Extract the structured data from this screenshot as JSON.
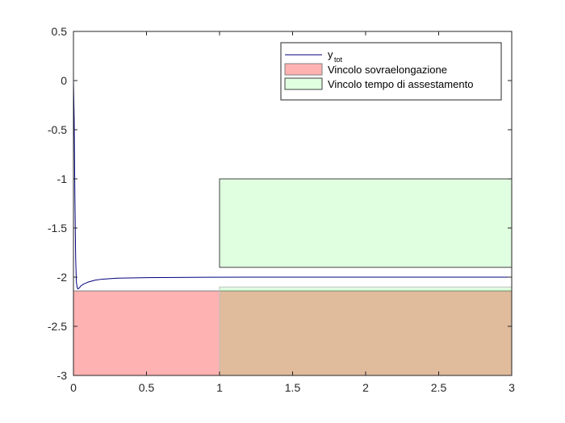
{
  "chart_data": {
    "type": "line",
    "title": "",
    "xlabel": "",
    "ylabel": "",
    "xlim": [
      0,
      3
    ],
    "ylim": [
      -3,
      0.5
    ],
    "x_ticks": [
      0,
      0.5,
      1,
      1.5,
      2,
      2.5,
      3
    ],
    "x_tick_labels": [
      "0",
      "0.5",
      "1",
      "1.5",
      "2",
      "2.5",
      "3"
    ],
    "y_ticks": [
      0.5,
      0,
      -0.5,
      -1,
      -1.5,
      -2,
      -2.5,
      -3
    ],
    "y_tick_labels": [
      "0.5",
      "0",
      "-0.5",
      "-1",
      "-1.5",
      "-2",
      "-2.5",
      "-3"
    ],
    "grid": false,
    "legend_position": "top-right",
    "series": [
      {
        "name": "y",
        "name_subscript": "tot",
        "color": "#00007f",
        "x": [
          0,
          0.005,
          0.01,
          0.015,
          0.02,
          0.025,
          0.03,
          0.04,
          0.05,
          0.07,
          0.1,
          0.15,
          0.2,
          0.3,
          0.5,
          0.8,
          1.2,
          2,
          3
        ],
        "y": [
          0.0,
          -0.4,
          -1.2,
          -1.8,
          -2.05,
          -2.1,
          -2.12,
          -2.11,
          -2.09,
          -2.07,
          -2.05,
          -2.03,
          -2.02,
          -2.01,
          -2.005,
          -2.002,
          -2.0,
          -2.0,
          -2.0
        ]
      }
    ],
    "regions": [
      {
        "name": "Vincolo sovraelongazione",
        "x": [
          0,
          3
        ],
        "y": [
          -3,
          -2.14
        ],
        "fill": "#ff0000",
        "opacity": 0.3,
        "border": "#808080"
      },
      {
        "name": "Vincolo tempo di assestamento",
        "x": [
          1,
          3
        ],
        "y": [
          -1.9,
          -1.0
        ],
        "fill": "#00ff00",
        "opacity": 0.12,
        "border": "#404040"
      },
      {
        "name": "",
        "x": [
          1,
          3
        ],
        "y": [
          -3,
          -2.1
        ],
        "fill": "#00ff00",
        "opacity": 0.12,
        "border": "#bfbfbf"
      }
    ]
  }
}
